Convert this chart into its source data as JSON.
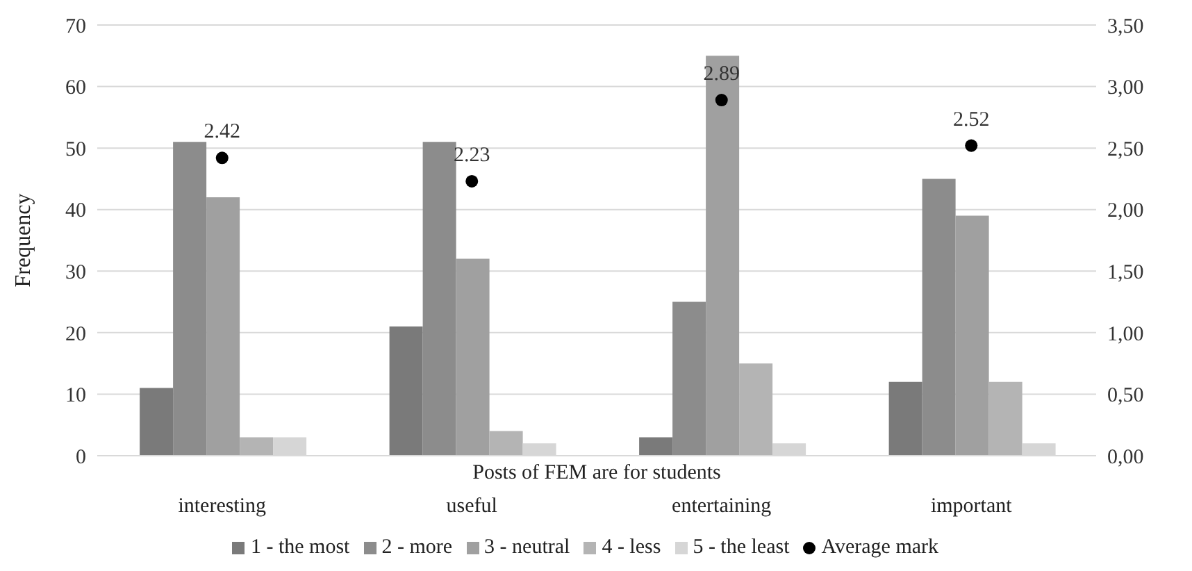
{
  "chart_data": {
    "type": "bar",
    "xlabel": "Posts of FEM are for students",
    "ylabel": "Frequency",
    "categories": [
      "interesting",
      "useful",
      "entertaining",
      "important"
    ],
    "series": [
      {
        "name": "1 - the most",
        "color": "#7a7a7a",
        "values": [
          11,
          21,
          3,
          12
        ]
      },
      {
        "name": "2 - more",
        "color": "#8c8c8c",
        "values": [
          51,
          51,
          25,
          45
        ]
      },
      {
        "name": "3 - neutral",
        "color": "#a0a0a0",
        "values": [
          42,
          32,
          65,
          39
        ]
      },
      {
        "name": "4 - less",
        "color": "#b4b4b4",
        "values": [
          3,
          4,
          15,
          12
        ]
      },
      {
        "name": "5 - the least",
        "color": "#d6d6d6",
        "values": [
          3,
          2,
          2,
          2
        ]
      },
      {
        "name": "Average mark",
        "type": "scatter",
        "axis": "y2",
        "marker": "circle",
        "color": "#000000",
        "values": [
          2.42,
          2.23,
          2.89,
          2.52
        ],
        "value_labels": [
          "2.42",
          "2.23",
          "2.89",
          "2.52"
        ]
      }
    ],
    "ylim": [
      0,
      70
    ],
    "yticks": [
      0,
      10,
      20,
      30,
      40,
      50,
      60,
      70
    ],
    "y2lim": [
      0,
      3.5
    ],
    "y2ticks": [
      {
        "value": 0,
        "label": "0,00"
      },
      {
        "value": 0.5,
        "label": "0,50"
      },
      {
        "value": 1,
        "label": "1,00"
      },
      {
        "value": 1.5,
        "label": "1,50"
      },
      {
        "value": 2,
        "label": "2,00"
      },
      {
        "value": 2.5,
        "label": "2,50"
      },
      {
        "value": 3,
        "label": "3,00"
      },
      {
        "value": 3.5,
        "label": "3,50"
      }
    ],
    "grid": "y",
    "legend": "bottom"
  }
}
